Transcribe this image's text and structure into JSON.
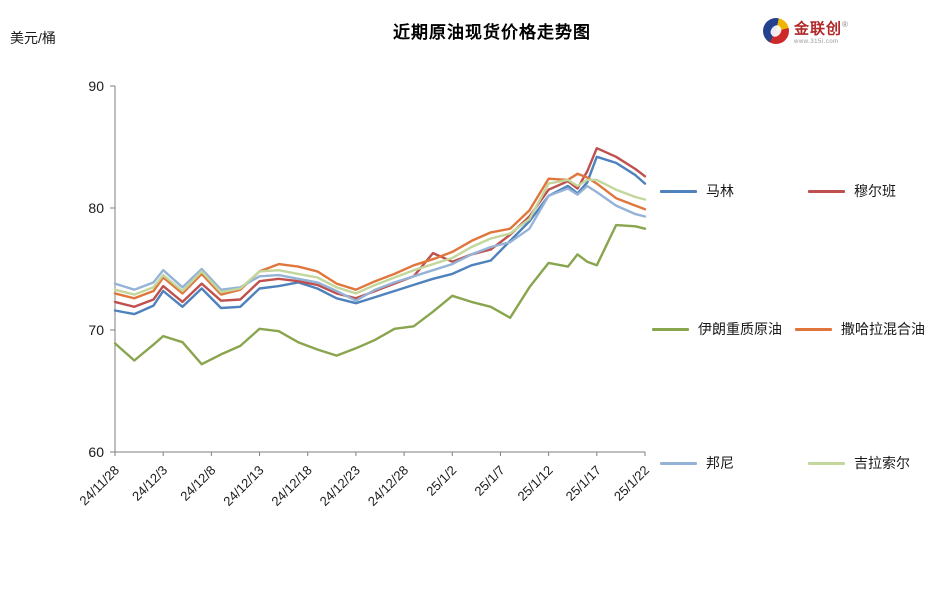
{
  "page": {
    "title": "近期原油现货价格走势图",
    "y_axis_unit": "美元/桶"
  },
  "logo": {
    "name": "金联创",
    "reg": "®",
    "subtext": "www.315i.com"
  },
  "chart_data": {
    "type": "line",
    "title": "近期原油现货价格走势图",
    "xlabel": "",
    "ylabel": "美元/桶",
    "ylim": [
      60,
      90
    ],
    "yticks": [
      60,
      70,
      80,
      90
    ],
    "grid": false,
    "legend_position": "right",
    "x_tick_labels": [
      "24/11/28",
      "24/12/3",
      "24/12/8",
      "24/12/13",
      "24/12/18",
      "24/12/23",
      "24/12/28",
      "25/1/2",
      "25/1/7",
      "25/1/12",
      "25/1/17",
      "25/1/22"
    ],
    "x_tick_days": [
      0,
      5,
      10,
      15,
      20,
      25,
      30,
      35,
      40,
      45,
      50,
      55
    ],
    "x_days": [
      0,
      2,
      4,
      5,
      7,
      9,
      11,
      13,
      15,
      17,
      19,
      21,
      23,
      25,
      27,
      29,
      31,
      33,
      35,
      37,
      39,
      41,
      43,
      45,
      47,
      48,
      49,
      50,
      52,
      54,
      55
    ],
    "series": [
      {
        "name": "马林",
        "color": "#4f81bd",
        "values": [
          71.6,
          71.3,
          72.0,
          73.2,
          71.9,
          73.4,
          71.8,
          71.9,
          73.4,
          73.6,
          73.9,
          73.4,
          72.6,
          72.2,
          72.7,
          73.2,
          73.7,
          74.2,
          74.6,
          75.3,
          75.7,
          77.3,
          78.9,
          81.0,
          81.8,
          81.2,
          82.1,
          84.2,
          83.7,
          82.7,
          82.0
        ]
      },
      {
        "name": "穆尔班",
        "color": "#c0504d",
        "values": [
          72.3,
          71.9,
          72.5,
          73.6,
          72.3,
          73.8,
          72.4,
          72.5,
          74.0,
          74.2,
          74.0,
          73.7,
          73.0,
          72.6,
          73.2,
          73.8,
          74.4,
          76.3,
          75.6,
          76.2,
          76.6,
          77.8,
          79.3,
          81.5,
          82.2,
          81.6,
          83.0,
          84.9,
          84.2,
          83.2,
          82.6
        ]
      },
      {
        "name": "伊朗重质原油",
        "color": "#89a54e",
        "values": [
          68.9,
          67.5,
          68.8,
          69.5,
          69.0,
          67.2,
          68.0,
          68.7,
          70.1,
          69.9,
          69.0,
          68.4,
          67.9,
          68.5,
          69.2,
          70.1,
          70.3,
          71.5,
          72.8,
          72.3,
          71.9,
          71.0,
          73.5,
          75.5,
          75.2,
          76.2,
          75.6,
          75.3,
          78.6,
          78.5,
          78.3
        ]
      },
      {
        "name": "撒哈拉混合油",
        "color": "#e0763c",
        "values": [
          73.0,
          72.6,
          73.2,
          74.3,
          73.0,
          74.6,
          72.9,
          73.3,
          74.8,
          75.4,
          75.2,
          74.8,
          73.8,
          73.3,
          74.0,
          74.6,
          75.3,
          75.8,
          76.4,
          77.3,
          78.0,
          78.3,
          79.8,
          82.4,
          82.3,
          82.8,
          82.5,
          82.0,
          80.8,
          80.2,
          79.9
        ]
      },
      {
        "name": "邦尼",
        "color": "#95b3d7",
        "values": [
          73.8,
          73.3,
          73.9,
          74.9,
          73.5,
          75.0,
          73.3,
          73.5,
          74.4,
          74.5,
          74.2,
          73.9,
          73.2,
          72.4,
          73.3,
          73.9,
          74.4,
          74.9,
          75.4,
          76.2,
          76.8,
          77.2,
          78.3,
          81.0,
          81.6,
          81.1,
          81.8,
          81.3,
          80.2,
          79.5,
          79.3
        ]
      },
      {
        "name": "吉拉索尔",
        "color": "#c3d69b",
        "values": [
          73.3,
          72.9,
          73.5,
          74.5,
          73.2,
          74.8,
          73.1,
          73.4,
          74.8,
          74.9,
          74.6,
          74.3,
          73.5,
          73.0,
          73.7,
          74.3,
          74.9,
          75.4,
          75.9,
          76.8,
          77.5,
          77.9,
          79.1,
          82.0,
          82.3,
          81.8,
          82.3,
          82.3,
          81.5,
          80.9,
          80.7
        ]
      }
    ]
  },
  "legend": {
    "rows": [
      {
        "col1_series": 0,
        "col2_series": 1
      },
      {
        "col1_series": 2,
        "col2_series": 3
      },
      {
        "col1_series": 4,
        "col2_series": 5
      }
    ]
  }
}
